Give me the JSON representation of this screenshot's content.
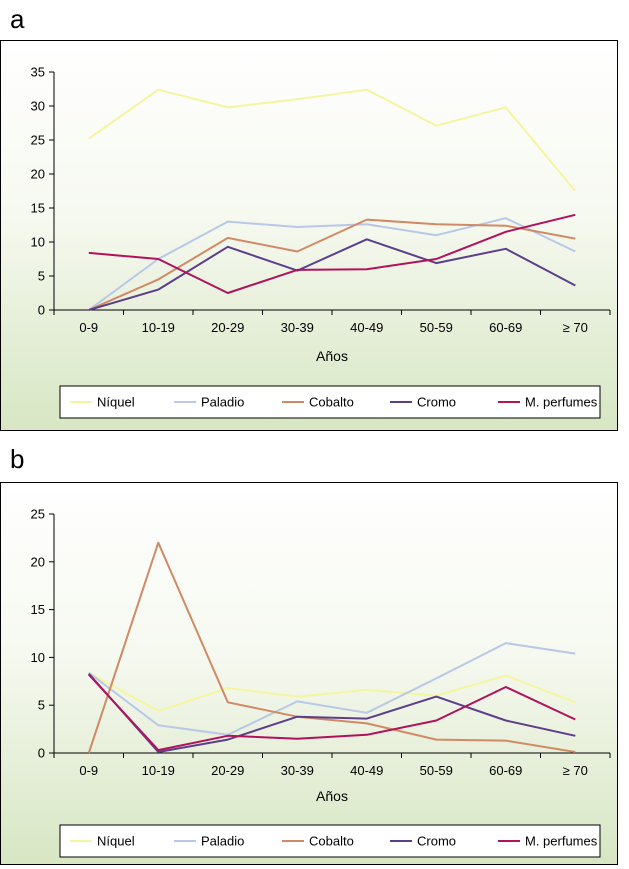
{
  "panels": [
    {
      "letter": "a",
      "chart_data": {
        "type": "line",
        "categories": [
          "0-9",
          "10-19",
          "20-29",
          "30-39",
          "40-49",
          "50-59",
          "60-69",
          "≥ 70"
        ],
        "xlabel": "Años",
        "ylabel": "",
        "ylim": [
          0,
          35
        ],
        "yticks": [
          0,
          5,
          10,
          15,
          20,
          25,
          30,
          35
        ],
        "legend_position": "bottom",
        "series": [
          {
            "name": "Níquel",
            "color": "#f5f5a0",
            "values": [
              25.2,
              32.4,
              29.8,
              31.0,
              32.4,
              27.1,
              29.8,
              17.5
            ]
          },
          {
            "name": "Paladio",
            "color": "#b8c8e6",
            "values": [
              0,
              7.5,
              13.0,
              12.2,
              12.6,
              11.0,
              13.5,
              8.6
            ]
          },
          {
            "name": "Cobalto",
            "color": "#d08a66",
            "values": [
              0,
              4.5,
              10.6,
              8.6,
              13.3,
              12.6,
              12.4,
              10.5
            ]
          },
          {
            "name": "Cromo",
            "color": "#5c3e8a",
            "values": [
              0,
              3.0,
              9.3,
              5.8,
              10.4,
              6.9,
              9.0,
              3.6
            ]
          },
          {
            "name": "M. perfumes",
            "color": "#b0125c",
            "values": [
              8.4,
              7.5,
              2.5,
              5.9,
              6.0,
              7.5,
              11.5,
              14.0
            ]
          }
        ]
      }
    },
    {
      "letter": "b",
      "chart_data": {
        "type": "line",
        "categories": [
          "0-9",
          "10-19",
          "20-29",
          "30-39",
          "40-49",
          "50-59",
          "60-69",
          "≥ 70"
        ],
        "xlabel": "Años",
        "ylabel": "",
        "ylim": [
          0,
          25
        ],
        "yticks": [
          0,
          5,
          10,
          15,
          20,
          25
        ],
        "legend_position": "bottom",
        "series": [
          {
            "name": "Níquel",
            "color": "#f5f5a0",
            "values": [
              8.4,
              4.4,
              6.8,
              5.9,
              6.6,
              6.0,
              8.1,
              5.3
            ]
          },
          {
            "name": "Paladio",
            "color": "#b8c8e6",
            "values": [
              8.4,
              2.9,
              1.9,
              5.4,
              4.2,
              7.8,
              11.5,
              10.4
            ]
          },
          {
            "name": "Cobalto",
            "color": "#d08a66",
            "values": [
              0,
              22.0,
              5.3,
              3.8,
              3.1,
              1.4,
              1.3,
              0.1
            ]
          },
          {
            "name": "Cromo",
            "color": "#5c3e8a",
            "values": [
              8.3,
              0.1,
              1.4,
              3.8,
              3.6,
              5.9,
              3.4,
              1.8
            ]
          },
          {
            "name": "M. perfumes",
            "color": "#b0125c",
            "values": [
              8.2,
              0.3,
              1.8,
              1.5,
              1.9,
              3.4,
              6.9,
              3.5
            ]
          }
        ]
      }
    }
  ]
}
